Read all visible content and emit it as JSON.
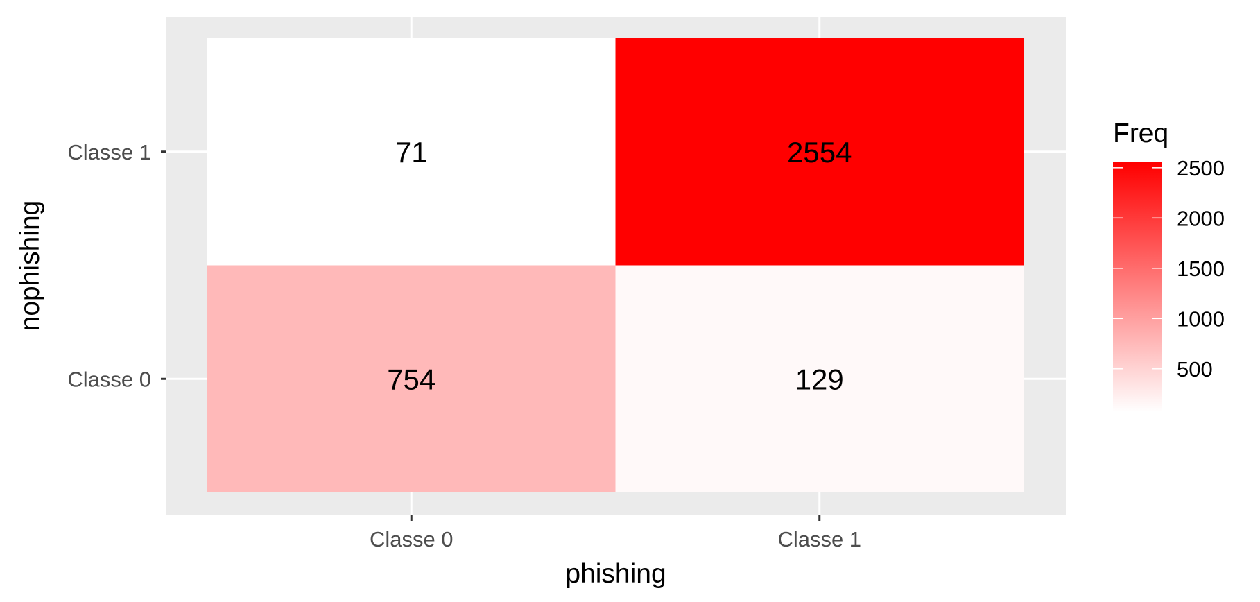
{
  "chart_data": {
    "type": "heatmap",
    "x_categories": [
      "Classe 0",
      "Classe 1"
    ],
    "y_categories": [
      "Classe 0",
      "Classe 1"
    ],
    "cells": [
      {
        "x": "Classe 0",
        "y": "Classe 1",
        "value": 71
      },
      {
        "x": "Classe 1",
        "y": "Classe 1",
        "value": 2554
      },
      {
        "x": "Classe 0",
        "y": "Classe 0",
        "value": 754
      },
      {
        "x": "Classe 1",
        "y": "Classe 0",
        "value": 129
      }
    ],
    "xlabel": "phishing",
    "ylabel": "nophishing",
    "legend": {
      "title": "Freq",
      "breaks": [
        500,
        1000,
        1500,
        2000,
        2500
      ],
      "range": [
        71,
        2554
      ],
      "position": "right"
    },
    "colors": {
      "low": "#ffffff",
      "high": "#ff0000",
      "panel_background": "#ebebeb",
      "grid": "#ffffff"
    },
    "grid": true
  }
}
